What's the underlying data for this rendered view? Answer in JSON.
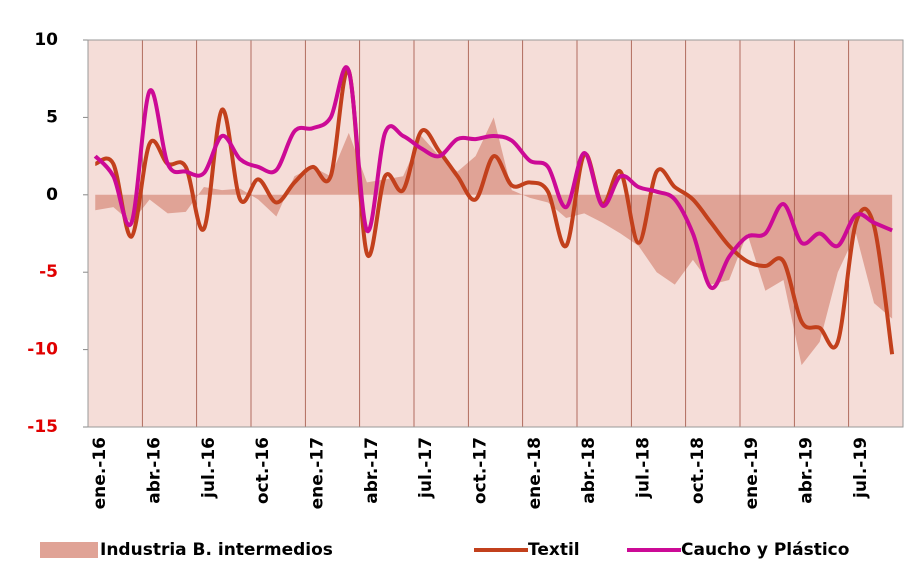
{
  "chart_data": {
    "type": "line",
    "categories": [
      "ene.-16",
      null,
      null,
      "abr.-16",
      null,
      null,
      "jul.-16",
      null,
      null,
      "oct.-16",
      null,
      null,
      "ene.-17",
      null,
      null,
      "abr.-17",
      null,
      null,
      "jul.-17",
      null,
      null,
      "oct.-17",
      null,
      null,
      "ene.-18",
      null,
      null,
      "abr.-18",
      null,
      null,
      "jul.-18",
      null,
      null,
      "oct.-18",
      null,
      null,
      "ene.-19",
      null,
      null,
      "abr.-19",
      null,
      null,
      "jul.-19",
      null,
      null
    ],
    "series": [
      {
        "name": "Industria B. intermedios",
        "kind": "area",
        "color": "#e0a396",
        "values": [
          -1,
          -0.8,
          -1.8,
          -0.3,
          -1.2,
          -1.1,
          0.5,
          0.3,
          0.4,
          -0.3,
          -1.4,
          1.2,
          1.8,
          1.2,
          4,
          0.8,
          1,
          1.2,
          3.8,
          2.5,
          1.5,
          2.5,
          5,
          0.3,
          -0.2,
          -0.5,
          -1.5,
          -1.2,
          -1.8,
          -2.5,
          -3.3,
          -5,
          -5.8,
          -4.2,
          -5.8,
          -5.5,
          -2.5,
          -6.2,
          -5.5,
          -11,
          -9.5,
          -5,
          -2.5,
          -7,
          -8
        ]
      },
      {
        "name": "Textil",
        "kind": "line",
        "color": "#c2401c",
        "values": [
          2,
          2,
          -2.7,
          3.3,
          2,
          1.8,
          -2.2,
          5.5,
          -0.3,
          1,
          -0.5,
          0.8,
          1.8,
          1.2,
          8,
          -3.8,
          1.2,
          0.3,
          4.1,
          2.8,
          1.2,
          -0.3,
          2.5,
          0.6,
          0.8,
          0.2,
          -3.3,
          2.6,
          -0.6,
          1.5,
          -3.1,
          1.5,
          0.5,
          -0.3,
          -1.8,
          -3.3,
          -4.3,
          -4.6,
          -4.3,
          -8.2,
          -8.6,
          -9.5,
          -1.8,
          -2,
          -10.3
        ]
      },
      {
        "name": "Caucho y Plástico",
        "kind": "line",
        "color": "#cc0a96",
        "values": [
          2.5,
          1.2,
          -1.8,
          6.7,
          2,
          1.5,
          1.4,
          3.8,
          2.3,
          1.8,
          1.6,
          4.1,
          4.3,
          5,
          8,
          -2.3,
          4,
          3.8,
          3,
          2.5,
          3.6,
          3.6,
          3.8,
          3.5,
          2.2,
          1.8,
          -0.8,
          2.7,
          -0.7,
          1.2,
          0.5,
          0.2,
          -0.3,
          -2.5,
          -6,
          -4,
          -2.7,
          -2.5,
          -0.6,
          -3.1,
          -2.5,
          -3.3,
          -1.3,
          -1.8,
          -2.3
        ]
      }
    ],
    "ylim": [
      -15,
      10
    ],
    "yticks": [
      -15,
      -10,
      -5,
      0,
      5,
      10
    ],
    "ytick_colors": [
      "#e00000",
      "#e00000",
      "#e00000",
      "#000000",
      "#000000",
      "#000000"
    ],
    "plot_background": "#f5ddd8",
    "grid_color": "#a05040",
    "grid": "x",
    "legend": "bottom"
  }
}
